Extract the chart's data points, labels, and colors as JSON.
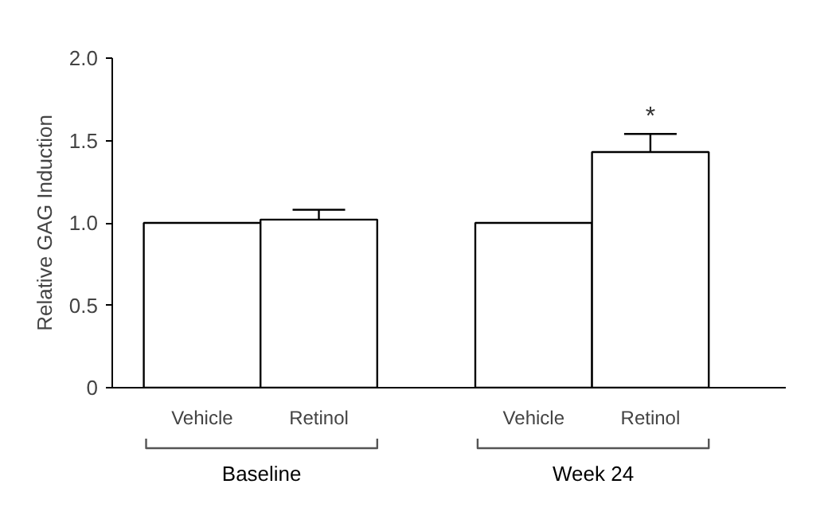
{
  "chart_data": {
    "type": "bar",
    "ylabel": "Relative GAG Induction",
    "categories": [
      "Vehicle",
      "Retinol",
      "Vehicle",
      "Retinol"
    ],
    "values": [
      1.0,
      1.02,
      1.0,
      1.43
    ],
    "errors": [
      null,
      0.06,
      null,
      0.11
    ],
    "color": "#ffffff",
    "ylim": [
      0,
      2.0
    ],
    "yticks": [
      {
        "value": 0,
        "label": "0"
      },
      {
        "value": 0.5,
        "label": "0.5"
      },
      {
        "value": 1.0,
        "label": "1.0"
      },
      {
        "value": 1.5,
        "label": "1.5"
      },
      {
        "value": 2.0,
        "label": "2.0"
      }
    ],
    "grid": false,
    "annotations": [
      "Baseline",
      "Week 24",
      "*"
    ]
  }
}
